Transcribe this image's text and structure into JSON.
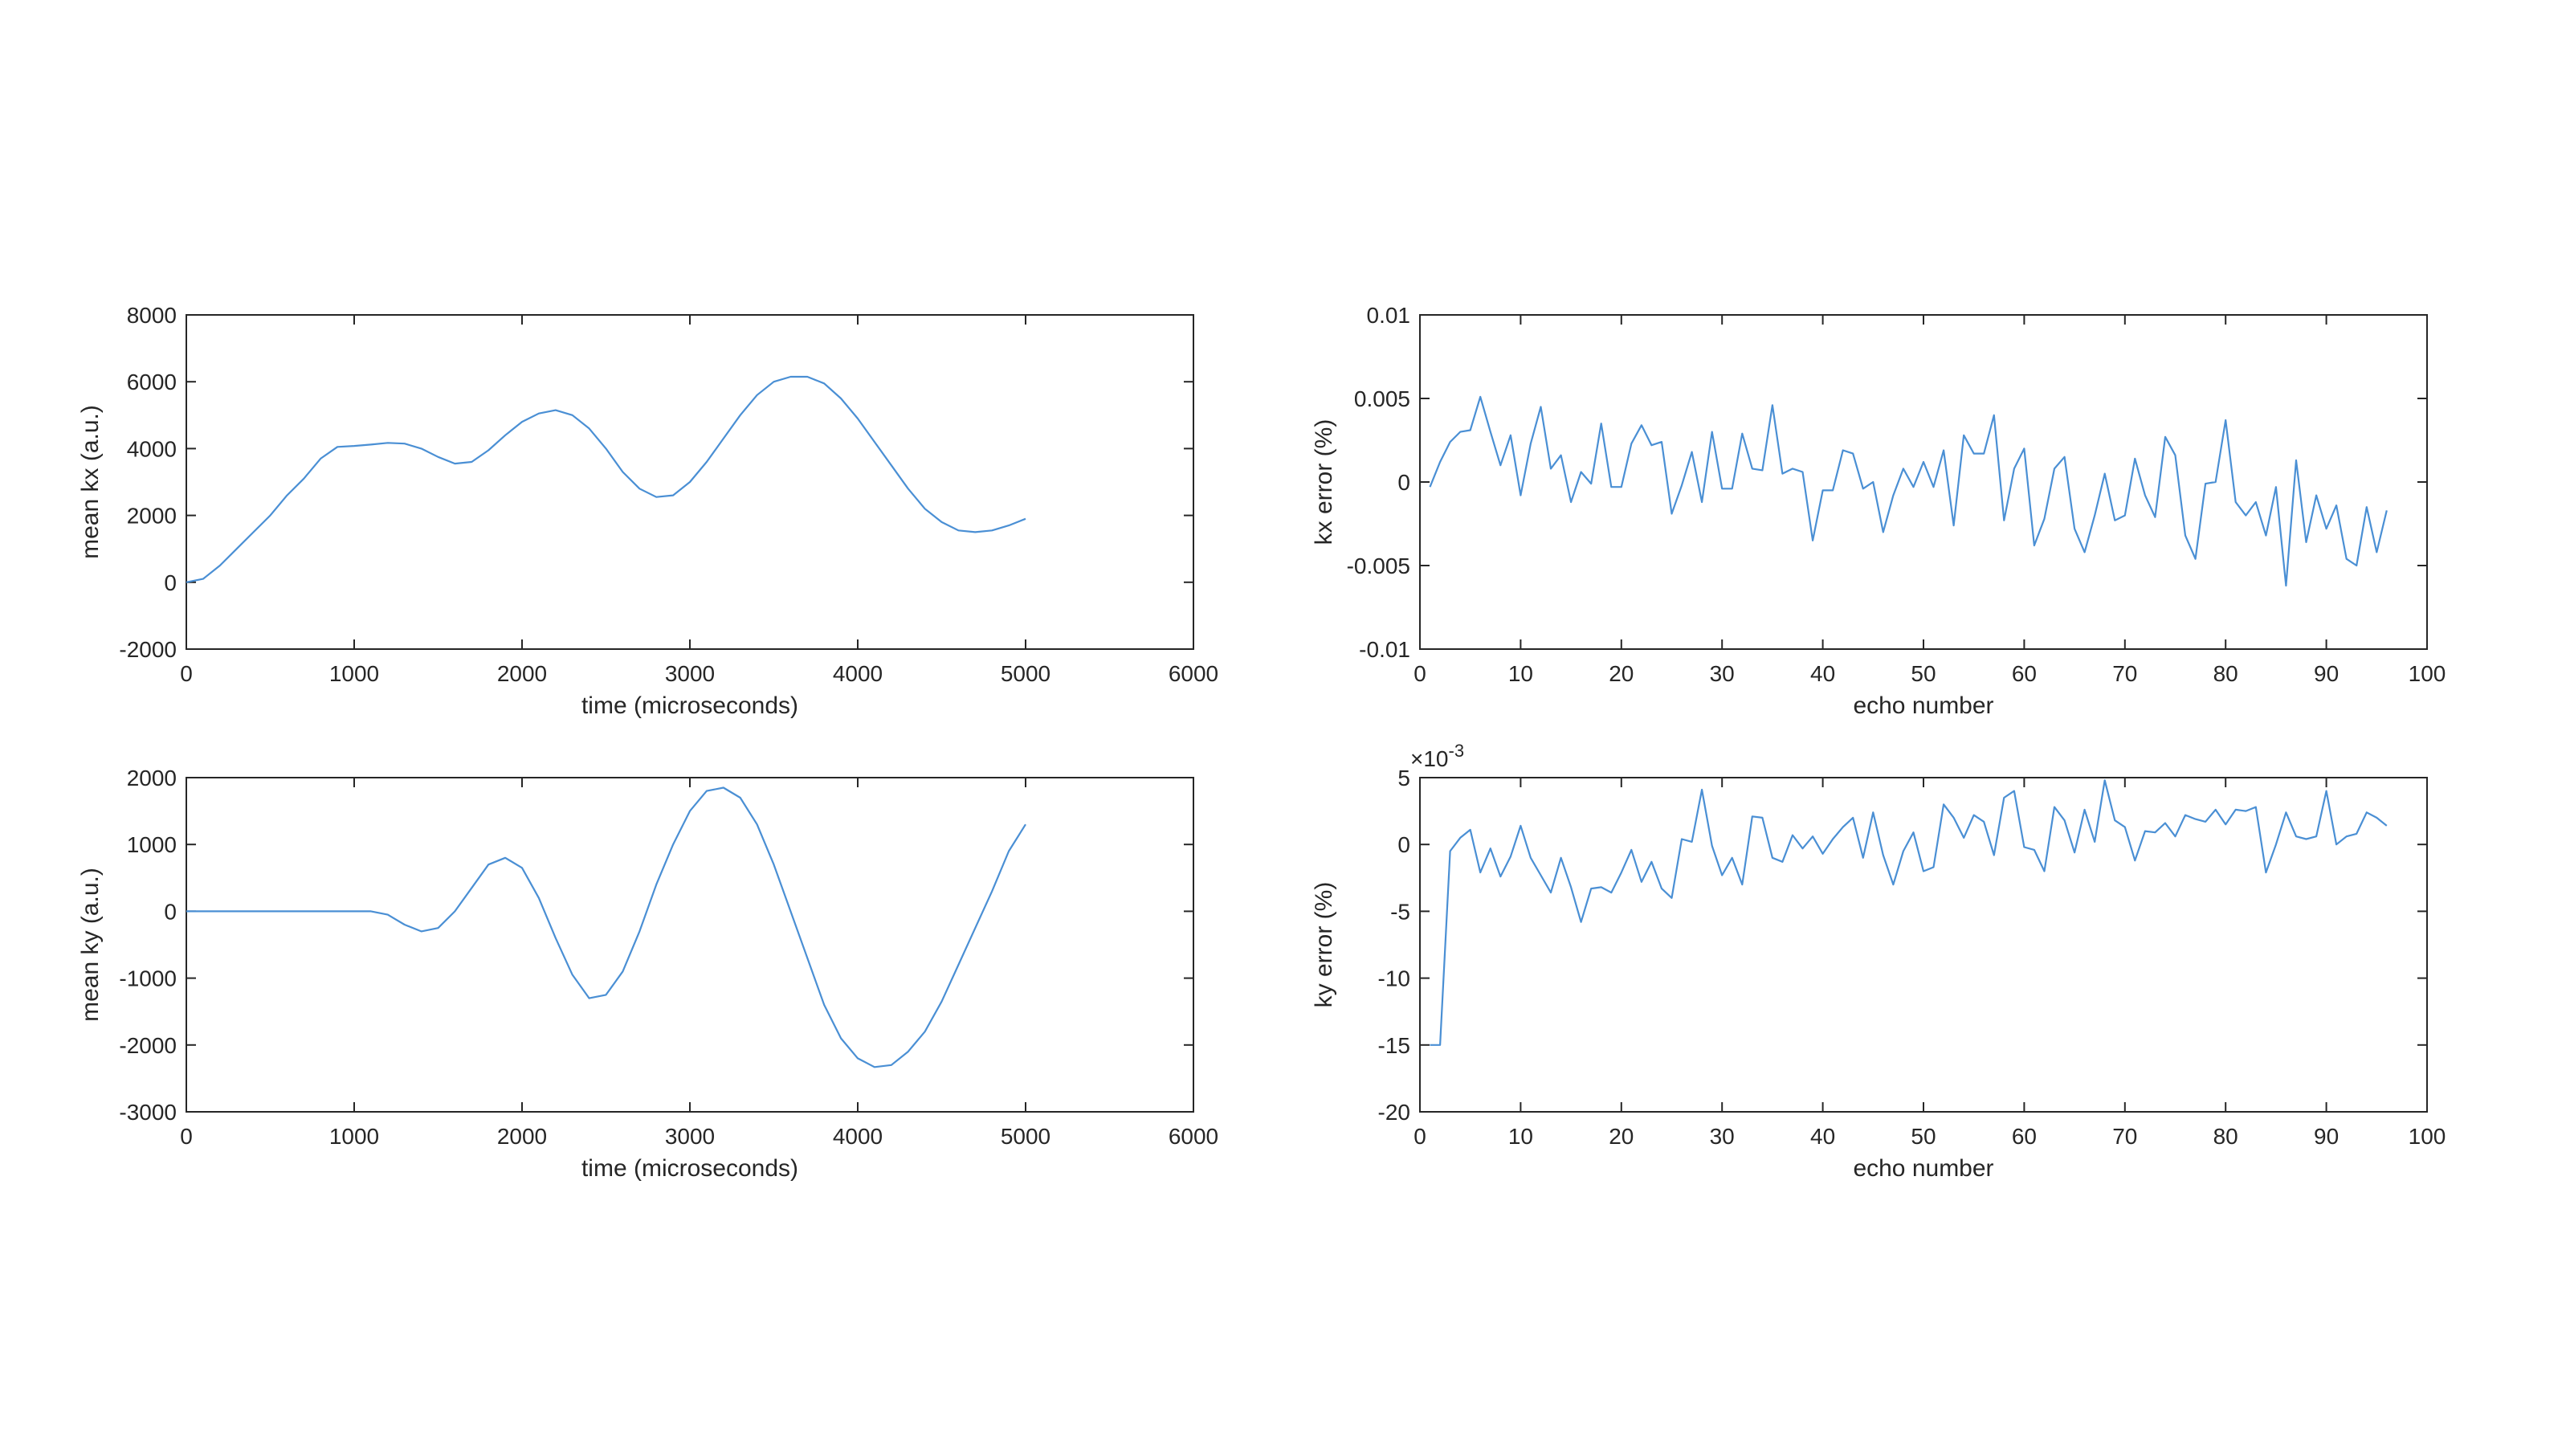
{
  "colors": {
    "line": "#4a8fd4",
    "axis": "#262626",
    "background": "#ffffff"
  },
  "chart_data": [
    {
      "type": "line",
      "xlabel": "time (microseconds)",
      "ylabel": "mean kx (a.u.)",
      "xlim": [
        0,
        6000
      ],
      "ylim": [
        -2000,
        8000
      ],
      "xticks": [
        0,
        1000,
        2000,
        3000,
        4000,
        5000,
        6000
      ],
      "xtick_labels": [
        "0",
        "1000",
        "2000",
        "3000",
        "4000",
        "5000",
        "6000"
      ],
      "yticks": [
        -2000,
        0,
        2000,
        4000,
        6000,
        8000
      ],
      "ytick_labels": [
        "-2000",
        "0",
        "2000",
        "4000",
        "6000",
        "8000"
      ],
      "grid": false,
      "series": [
        {
          "x": [
            0,
            100,
            200,
            300,
            400,
            500,
            600,
            700,
            800,
            900,
            1000,
            1100,
            1200,
            1300,
            1400,
            1500,
            1600,
            1700,
            1800,
            1900,
            2000,
            2100,
            2200,
            2300,
            2400,
            2500,
            2600,
            2700,
            2800,
            2900,
            3000,
            3100,
            3200,
            3300,
            3400,
            3500,
            3600,
            3700,
            3800,
            3900,
            4000,
            4100,
            4200,
            4300,
            4400,
            4500,
            4600,
            4700,
            4800,
            4900,
            5000
          ],
          "values": [
            0,
            100,
            500,
            1000,
            1500,
            2000,
            2600,
            3100,
            3700,
            4050,
            4080,
            4120,
            4170,
            4150,
            4000,
            3750,
            3550,
            3600,
            3950,
            4400,
            4800,
            5050,
            5150,
            5000,
            4600,
            4000,
            3300,
            2800,
            2550,
            2600,
            3000,
            3600,
            4300,
            5000,
            5600,
            6000,
            6150,
            6150,
            5950,
            5500,
            4900,
            4200,
            3500,
            2800,
            2200,
            1800,
            1550,
            1500,
            1550,
            1700,
            1900
          ]
        }
      ]
    },
    {
      "type": "line",
      "xlabel": "echo number",
      "ylabel": "kx error (%)",
      "xlim": [
        0,
        100
      ],
      "ylim": [
        -0.01,
        0.01
      ],
      "xticks": [
        0,
        10,
        20,
        30,
        40,
        50,
        60,
        70,
        80,
        90,
        100
      ],
      "xtick_labels": [
        "0",
        "10",
        "20",
        "30",
        "40",
        "50",
        "60",
        "70",
        "80",
        "90",
        "100"
      ],
      "yticks": [
        -0.01,
        -0.005,
        0,
        0.005,
        0.01
      ],
      "ytick_labels": [
        "-0.01",
        "-0.005",
        "0",
        "0.005",
        "0.01"
      ],
      "grid": false,
      "series": [
        {
          "x": [
            1,
            2,
            3,
            4,
            5,
            6,
            7,
            8,
            9,
            10,
            11,
            12,
            13,
            14,
            15,
            16,
            17,
            18,
            19,
            20,
            21,
            22,
            23,
            24,
            25,
            26,
            27,
            28,
            29,
            30,
            31,
            32,
            33,
            34,
            35,
            36,
            37,
            38,
            39,
            40,
            41,
            42,
            43,
            44,
            45,
            46,
            47,
            48,
            49,
            50,
            51,
            52,
            53,
            54,
            55,
            56,
            57,
            58,
            59,
            60,
            61,
            62,
            63,
            64,
            65,
            66,
            67,
            68,
            69,
            70,
            71,
            72,
            73,
            74,
            75,
            76,
            77,
            78,
            79,
            80,
            81,
            82,
            83,
            84,
            85,
            86,
            87,
            88,
            89,
            90,
            91,
            92,
            93,
            94,
            95,
            96
          ],
          "values": [
            -0.0003,
            0.0012,
            0.0024,
            0.003,
            0.0031,
            0.0051,
            0.003,
            0.001,
            0.0028,
            -0.0008,
            0.0023,
            0.0045,
            0.0008,
            0.0016,
            -0.0012,
            0.0006,
            -0.0001,
            0.0035,
            -0.0003,
            -0.0003,
            0.0023,
            0.0034,
            0.0022,
            0.0024,
            -0.0019,
            -0.0002,
            0.0018,
            -0.0012,
            0.003,
            -0.0004,
            -0.0004,
            0.0029,
            0.0008,
            0.0007,
            0.0046,
            0.0005,
            0.0008,
            0.0006,
            -0.0035,
            -0.0005,
            -0.0005,
            0.0019,
            0.0017,
            -0.0004,
            0.0,
            -0.003,
            -0.0008,
            0.0008,
            -0.0003,
            0.0012,
            -0.0003,
            0.0019,
            -0.0026,
            0.0028,
            0.0017,
            0.0017,
            0.004,
            -0.0023,
            0.0008,
            0.002,
            -0.0038,
            -0.0022,
            0.0008,
            0.0015,
            -0.0028,
            -0.0042,
            -0.002,
            0.0005,
            -0.0023,
            -0.002,
            0.0014,
            -0.0008,
            -0.0021,
            0.0027,
            0.0016,
            -0.0032,
            -0.0046,
            -0.0001,
            0.0,
            0.0037,
            -0.0012,
            -0.002,
            -0.0012,
            -0.0032,
            -0.0003,
            -0.0062,
            0.0013,
            -0.0036,
            -0.0008,
            -0.0028,
            -0.0014,
            -0.0046,
            -0.005,
            -0.0015,
            -0.0042,
            -0.0017
          ]
        }
      ]
    },
    {
      "type": "line",
      "xlabel": "time (microseconds)",
      "ylabel": "mean ky (a.u.)",
      "xlim": [
        0,
        6000
      ],
      "ylim": [
        -3000,
        2000
      ],
      "xticks": [
        0,
        1000,
        2000,
        3000,
        4000,
        5000,
        6000
      ],
      "xtick_labels": [
        "0",
        "1000",
        "2000",
        "3000",
        "4000",
        "5000",
        "6000"
      ],
      "yticks": [
        -3000,
        -2000,
        -1000,
        0,
        1000,
        2000
      ],
      "ytick_labels": [
        "-3000",
        "-2000",
        "-1000",
        "0",
        "1000",
        "2000"
      ],
      "grid": false,
      "series": [
        {
          "x": [
            0,
            100,
            200,
            300,
            400,
            500,
            600,
            700,
            800,
            900,
            1000,
            1100,
            1200,
            1300,
            1400,
            1500,
            1600,
            1700,
            1800,
            1900,
            2000,
            2100,
            2200,
            2300,
            2400,
            2500,
            2600,
            2700,
            2800,
            2900,
            3000,
            3100,
            3200,
            3300,
            3400,
            3500,
            3600,
            3700,
            3800,
            3900,
            4000,
            4100,
            4200,
            4300,
            4400,
            4500,
            4600,
            4700,
            4800,
            4900,
            5000
          ],
          "values": [
            0,
            0,
            0,
            0,
            0,
            0,
            0,
            0,
            0,
            0,
            0,
            0,
            -50,
            -200,
            -300,
            -250,
            0,
            350,
            700,
            800,
            650,
            200,
            -400,
            -950,
            -1300,
            -1250,
            -900,
            -300,
            400,
            1000,
            1500,
            1800,
            1850,
            1700,
            1300,
            700,
            0,
            -700,
            -1400,
            -1900,
            -2200,
            -2330,
            -2300,
            -2100,
            -1800,
            -1350,
            -800,
            -250,
            300,
            900,
            1300
          ]
        }
      ]
    },
    {
      "type": "line",
      "xlabel": "echo number",
      "ylabel": "ky error (%)",
      "scale_label": "×10",
      "scale_exponent": "-3",
      "xlim": [
        0,
        100
      ],
      "ylim": [
        -20,
        5
      ],
      "xticks": [
        0,
        10,
        20,
        30,
        40,
        50,
        60,
        70,
        80,
        90,
        100
      ],
      "xtick_labels": [
        "0",
        "10",
        "20",
        "30",
        "40",
        "50",
        "60",
        "70",
        "80",
        "90",
        "100"
      ],
      "yticks": [
        -20,
        -15,
        -10,
        -5,
        0,
        5
      ],
      "ytick_labels": [
        "-20",
        "-15",
        "-10",
        "-5",
        "0",
        "5"
      ],
      "grid": false,
      "series": [
        {
          "x": [
            1,
            2,
            3,
            4,
            5,
            6,
            7,
            8,
            9,
            10,
            11,
            12,
            13,
            14,
            15,
            16,
            17,
            18,
            19,
            20,
            21,
            22,
            23,
            24,
            25,
            26,
            27,
            28,
            29,
            30,
            31,
            32,
            33,
            34,
            35,
            36,
            37,
            38,
            39,
            40,
            41,
            42,
            43,
            44,
            45,
            46,
            47,
            48,
            49,
            50,
            51,
            52,
            53,
            54,
            55,
            56,
            57,
            58,
            59,
            60,
            61,
            62,
            63,
            64,
            65,
            66,
            67,
            68,
            69,
            70,
            71,
            72,
            73,
            74,
            75,
            76,
            77,
            78,
            79,
            80,
            81,
            82,
            83,
            84,
            85,
            86,
            87,
            88,
            89,
            90,
            91,
            92,
            93,
            94,
            95,
            96
          ],
          "values": [
            -15,
            -15,
            -0.5,
            0.5,
            1.1,
            -2.1,
            -0.3,
            -2.4,
            -0.9,
            1.4,
            -1.0,
            -2.3,
            -3.6,
            -1.0,
            -3.2,
            -5.8,
            -3.3,
            -3.2,
            -3.6,
            -2.1,
            -0.4,
            -2.8,
            -1.3,
            -3.3,
            -4.0,
            0.4,
            0.2,
            4.1,
            -0.1,
            -2.3,
            -1.0,
            -3.0,
            2.1,
            2.0,
            -1.0,
            -1.3,
            0.7,
            -0.3,
            0.6,
            -0.7,
            0.4,
            1.3,
            2.0,
            -1.0,
            2.4,
            -0.8,
            -3.0,
            -0.5,
            0.9,
            -2.0,
            -1.7,
            3.0,
            2.0,
            0.5,
            2.2,
            1.7,
            -0.8,
            3.5,
            4.0,
            -0.2,
            -0.4,
            -2.0,
            2.8,
            1.8,
            -0.6,
            2.6,
            0.2,
            4.8,
            1.8,
            1.3,
            -1.2,
            1.0,
            0.9,
            1.6,
            0.6,
            2.2,
            1.9,
            1.7,
            2.6,
            1.5,
            2.6,
            2.5,
            2.8,
            -2.1,
            0.0,
            2.4,
            0.6,
            0.4,
            0.6,
            4.0,
            0.0,
            0.6,
            0.8,
            2.4,
            2.0,
            1.4
          ]
        }
      ]
    }
  ]
}
